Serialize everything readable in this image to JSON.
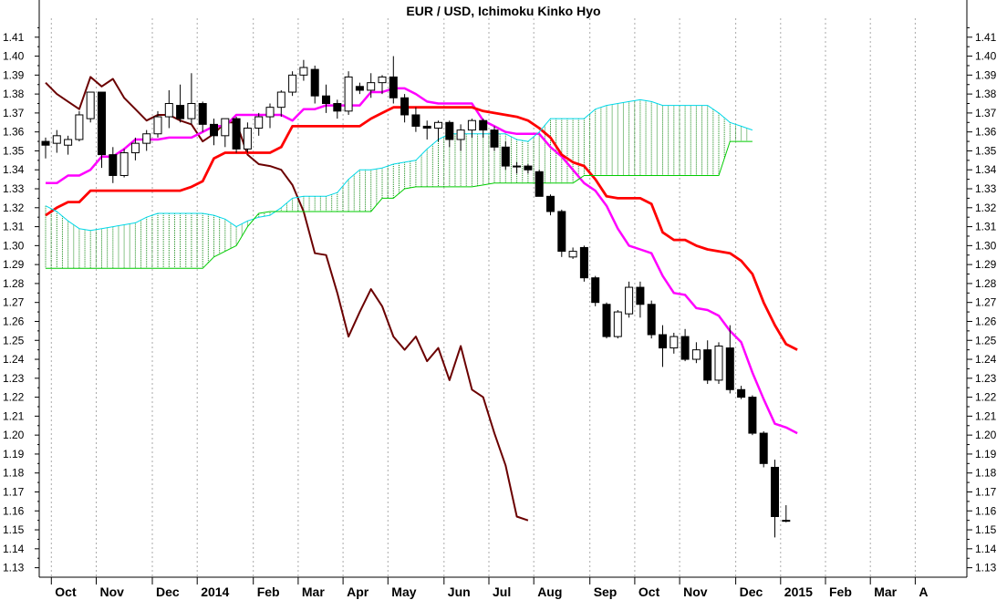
{
  "chart_data": {
    "type": "line",
    "title": "EUR / USD, Ichimoku Kinko Hyo",
    "ylim": [
      1.125,
      1.42
    ],
    "yticks": [
      1.13,
      1.14,
      1.15,
      1.16,
      1.17,
      1.18,
      1.19,
      1.2,
      1.21,
      1.22,
      1.23,
      1.24,
      1.25,
      1.26,
      1.27,
      1.28,
      1.29,
      1.3,
      1.31,
      1.32,
      1.33,
      1.34,
      1.35,
      1.36,
      1.37,
      1.38,
      1.39,
      1.4,
      1.41
    ],
    "ytick_labels": [
      "1.13",
      "1.14",
      "1.15",
      "1.16",
      "1.17",
      "1.18",
      "1.19",
      "1.20",
      "1.21",
      "1.22",
      "1.23",
      "1.24",
      "1.25",
      "1.26",
      "1.27",
      "1.28",
      "1.29",
      "1.30",
      "1.31",
      "1.32",
      "1.33",
      "1.34",
      "1.35",
      "1.36",
      "1.37",
      "1.38",
      "1.39",
      "1.40",
      "1.41"
    ],
    "months": [
      {
        "label": "Oct",
        "week": 1
      },
      {
        "label": "Nov",
        "week": 5
      },
      {
        "label": "Dec",
        "week": 10
      },
      {
        "label": "2014",
        "week": 14
      },
      {
        "label": "Feb",
        "week": 19
      },
      {
        "label": "Mar",
        "week": 23
      },
      {
        "label": "Apr",
        "week": 27
      },
      {
        "label": "May",
        "week": 31
      },
      {
        "label": "Jun",
        "week": 36
      },
      {
        "label": "Jul",
        "week": 40
      },
      {
        "label": "Aug",
        "week": 44
      },
      {
        "label": "Sep",
        "week": 49
      },
      {
        "label": "Oct",
        "week": 53
      },
      {
        "label": "Nov",
        "week": 57
      },
      {
        "label": "Dec",
        "week": 62
      },
      {
        "label": "2015",
        "week": 66
      },
      {
        "label": "Feb",
        "week": 70
      },
      {
        "label": "Mar",
        "week": 74
      },
      {
        "label": "A",
        "week": 78
      }
    ],
    "candles": [
      {
        "o": 1.355,
        "h": 1.357,
        "l": 1.346,
        "c": 1.353
      },
      {
        "o": 1.354,
        "h": 1.361,
        "l": 1.349,
        "c": 1.358
      },
      {
        "o": 1.353,
        "h": 1.358,
        "l": 1.348,
        "c": 1.356
      },
      {
        "o": 1.356,
        "h": 1.371,
        "l": 1.355,
        "c": 1.369
      },
      {
        "o": 1.367,
        "h": 1.381,
        "l": 1.365,
        "c": 1.381
      },
      {
        "o": 1.381,
        "h": 1.381,
        "l": 1.341,
        "c": 1.348
      },
      {
        "o": 1.348,
        "h": 1.352,
        "l": 1.333,
        "c": 1.337
      },
      {
        "o": 1.337,
        "h": 1.351,
        "l": 1.336,
        "c": 1.349
      },
      {
        "o": 1.349,
        "h": 1.357,
        "l": 1.345,
        "c": 1.354
      },
      {
        "o": 1.354,
        "h": 1.361,
        "l": 1.35,
        "c": 1.359
      },
      {
        "o": 1.359,
        "h": 1.371,
        "l": 1.357,
        "c": 1.368
      },
      {
        "o": 1.368,
        "h": 1.382,
        "l": 1.362,
        "c": 1.375
      },
      {
        "o": 1.374,
        "h": 1.385,
        "l": 1.365,
        "c": 1.367
      },
      {
        "o": 1.367,
        "h": 1.391,
        "l": 1.364,
        "c": 1.375
      },
      {
        "o": 1.375,
        "h": 1.376,
        "l": 1.36,
        "c": 1.364
      },
      {
        "o": 1.364,
        "h": 1.367,
        "l": 1.353,
        "c": 1.358
      },
      {
        "o": 1.358,
        "h": 1.367,
        "l": 1.352,
        "c": 1.367
      },
      {
        "o": 1.367,
        "h": 1.368,
        "l": 1.349,
        "c": 1.351
      },
      {
        "o": 1.351,
        "h": 1.365,
        "l": 1.349,
        "c": 1.362
      },
      {
        "o": 1.362,
        "h": 1.37,
        "l": 1.358,
        "c": 1.368
      },
      {
        "o": 1.368,
        "h": 1.375,
        "l": 1.362,
        "c": 1.373
      },
      {
        "o": 1.373,
        "h": 1.382,
        "l": 1.368,
        "c": 1.381
      },
      {
        "o": 1.381,
        "h": 1.392,
        "l": 1.379,
        "c": 1.39
      },
      {
        "o": 1.39,
        "h": 1.398,
        "l": 1.387,
        "c": 1.394
      },
      {
        "o": 1.393,
        "h": 1.395,
        "l": 1.375,
        "c": 1.379
      },
      {
        "o": 1.379,
        "h": 1.385,
        "l": 1.37,
        "c": 1.375
      },
      {
        "o": 1.375,
        "h": 1.377,
        "l": 1.367,
        "c": 1.371
      },
      {
        "o": 1.371,
        "h": 1.392,
        "l": 1.369,
        "c": 1.389
      },
      {
        "o": 1.384,
        "h": 1.386,
        "l": 1.38,
        "c": 1.382
      },
      {
        "o": 1.382,
        "h": 1.391,
        "l": 1.378,
        "c": 1.386
      },
      {
        "o": 1.386,
        "h": 1.39,
        "l": 1.38,
        "c": 1.389
      },
      {
        "o": 1.389,
        "h": 1.4,
        "l": 1.375,
        "c": 1.378
      },
      {
        "o": 1.378,
        "h": 1.38,
        "l": 1.365,
        "c": 1.369
      },
      {
        "o": 1.369,
        "h": 1.373,
        "l": 1.36,
        "c": 1.363
      },
      {
        "o": 1.363,
        "h": 1.366,
        "l": 1.356,
        "c": 1.362
      },
      {
        "o": 1.362,
        "h": 1.366,
        "l": 1.355,
        "c": 1.365
      },
      {
        "o": 1.365,
        "h": 1.366,
        "l": 1.352,
        "c": 1.356
      },
      {
        "o": 1.356,
        "h": 1.364,
        "l": 1.35,
        "c": 1.361
      },
      {
        "o": 1.361,
        "h": 1.367,
        "l": 1.357,
        "c": 1.366
      },
      {
        "o": 1.366,
        "h": 1.367,
        "l": 1.357,
        "c": 1.361
      },
      {
        "o": 1.361,
        "h": 1.363,
        "l": 1.35,
        "c": 1.352
      },
      {
        "o": 1.352,
        "h": 1.355,
        "l": 1.34,
        "c": 1.342
      },
      {
        "o": 1.342,
        "h": 1.344,
        "l": 1.338,
        "c": 1.342
      },
      {
        "o": 1.342,
        "h": 1.343,
        "l": 1.338,
        "c": 1.34
      },
      {
        "o": 1.339,
        "h": 1.34,
        "l": 1.326,
        "c": 1.326
      },
      {
        "o": 1.326,
        "h": 1.327,
        "l": 1.316,
        "c": 1.318
      },
      {
        "o": 1.318,
        "h": 1.319,
        "l": 1.294,
        "c": 1.297
      },
      {
        "o": 1.294,
        "h": 1.299,
        "l": 1.293,
        "c": 1.297
      },
      {
        "o": 1.299,
        "h": 1.3,
        "l": 1.281,
        "c": 1.283
      },
      {
        "o": 1.283,
        "h": 1.284,
        "l": 1.268,
        "c": 1.27
      },
      {
        "o": 1.269,
        "h": 1.27,
        "l": 1.251,
        "c": 1.252
      },
      {
        "o": 1.252,
        "h": 1.266,
        "l": 1.251,
        "c": 1.265
      },
      {
        "o": 1.264,
        "h": 1.281,
        "l": 1.262,
        "c": 1.278
      },
      {
        "o": 1.278,
        "h": 1.281,
        "l": 1.262,
        "c": 1.269
      },
      {
        "o": 1.269,
        "h": 1.271,
        "l": 1.251,
        "c": 1.253
      },
      {
        "o": 1.253,
        "h": 1.258,
        "l": 1.236,
        "c": 1.246
      },
      {
        "o": 1.246,
        "h": 1.254,
        "l": 1.243,
        "c": 1.252
      },
      {
        "o": 1.252,
        "h": 1.256,
        "l": 1.239,
        "c": 1.24
      },
      {
        "o": 1.24,
        "h": 1.249,
        "l": 1.238,
        "c": 1.245
      },
      {
        "o": 1.245,
        "h": 1.25,
        "l": 1.227,
        "c": 1.229
      },
      {
        "o": 1.229,
        "h": 1.249,
        "l": 1.227,
        "c": 1.247
      },
      {
        "o": 1.246,
        "h": 1.258,
        "l": 1.222,
        "c": 1.224
      },
      {
        "o": 1.224,
        "h": 1.226,
        "l": 1.219,
        "c": 1.22
      },
      {
        "o": 1.22,
        "h": 1.221,
        "l": 1.2,
        "c": 1.201
      },
      {
        "o": 1.201,
        "h": 1.202,
        "l": 1.183,
        "c": 1.185
      },
      {
        "o": 1.183,
        "h": 1.187,
        "l": 1.146,
        "c": 1.157
      },
      {
        "o": 1.155,
        "h": 1.163,
        "l": 1.154,
        "c": 1.155
      }
    ],
    "series": [
      {
        "role": "chikou",
        "color": "#6b0000",
        "start_week": 0,
        "values": [
          1.386,
          1.38,
          1.376,
          1.372,
          1.389,
          1.384,
          1.388,
          1.378,
          1.372,
          1.366,
          1.369,
          1.369,
          1.366,
          1.364,
          1.355,
          1.359,
          1.365,
          1.365,
          1.348,
          1.343,
          1.342,
          1.34,
          1.332,
          1.318,
          1.296,
          1.295,
          1.275,
          1.252,
          1.265,
          1.277,
          1.268,
          1.252,
          1.245,
          1.252,
          1.239,
          1.246,
          1.229,
          1.247,
          1.224,
          1.22,
          1.201,
          1.184,
          1.157,
          1.155
        ]
      },
      {
        "role": "tenkan",
        "color": "#ff00ff",
        "start_week": 0,
        "values": [
          1.333,
          1.333,
          1.337,
          1.337,
          1.34,
          1.347,
          1.347,
          1.351,
          1.356,
          1.356,
          1.356,
          1.357,
          1.357,
          1.357,
          1.36,
          1.363,
          1.363,
          1.369,
          1.369,
          1.369,
          1.369,
          1.369,
          1.366,
          1.372,
          1.372,
          1.374,
          1.374,
          1.374,
          1.374,
          1.381,
          1.381,
          1.383,
          1.383,
          1.38,
          1.376,
          1.375,
          1.375,
          1.375,
          1.375,
          1.366,
          1.363,
          1.36,
          1.359,
          1.359,
          1.359,
          1.352,
          1.347,
          1.34,
          1.333,
          1.329,
          1.321,
          1.309,
          1.3,
          1.298,
          1.296,
          1.284,
          1.275,
          1.274,
          1.267,
          1.266,
          1.263,
          1.255,
          1.249,
          1.233,
          1.219,
          1.206,
          1.204,
          1.201
        ]
      },
      {
        "role": "kijun",
        "color": "#ff0000",
        "start_week": 0,
        "values": [
          1.316,
          1.32,
          1.323,
          1.323,
          1.329,
          1.329,
          1.329,
          1.329,
          1.329,
          1.329,
          1.329,
          1.329,
          1.329,
          1.331,
          1.334,
          1.346,
          1.349,
          1.349,
          1.349,
          1.349,
          1.349,
          1.352,
          1.363,
          1.363,
          1.363,
          1.363,
          1.363,
          1.363,
          1.363,
          1.367,
          1.37,
          1.373,
          1.373,
          1.373,
          1.373,
          1.373,
          1.373,
          1.373,
          1.373,
          1.371,
          1.37,
          1.369,
          1.368,
          1.366,
          1.362,
          1.357,
          1.348,
          1.344,
          1.342,
          1.335,
          1.326,
          1.325,
          1.325,
          1.325,
          1.322,
          1.307,
          1.303,
          1.303,
          1.3,
          1.298,
          1.297,
          1.296,
          1.292,
          1.285,
          1.27,
          1.258,
          1.248,
          1.245
        ]
      },
      {
        "role": "senkou_a",
        "color": "#00d8e8",
        "start_week": 0,
        "values": [
          1.321,
          1.318,
          1.313,
          1.309,
          1.308,
          1.309,
          1.31,
          1.311,
          1.312,
          1.315,
          1.317,
          1.317,
          1.317,
          1.317,
          1.317,
          1.316,
          1.314,
          1.31,
          1.313,
          1.315,
          1.316,
          1.32,
          1.325,
          1.326,
          1.326,
          1.326,
          1.328,
          1.335,
          1.34,
          1.34,
          1.341,
          1.343,
          1.344,
          1.345,
          1.351,
          1.356,
          1.359,
          1.359,
          1.359,
          1.359,
          1.359,
          1.359,
          1.356,
          1.355,
          1.36,
          1.367,
          1.367,
          1.367,
          1.367,
          1.372,
          1.374,
          1.375,
          1.376,
          1.377,
          1.376,
          1.374,
          1.374,
          1.374,
          1.374,
          1.374,
          1.37,
          1.365,
          1.363,
          1.361
        ]
      },
      {
        "role": "senkou_b",
        "color": "#00cc00",
        "start_week": 0,
        "values": [
          1.288,
          1.288,
          1.288,
          1.288,
          1.288,
          1.288,
          1.288,
          1.288,
          1.288,
          1.288,
          1.288,
          1.288,
          1.288,
          1.288,
          1.288,
          1.294,
          1.297,
          1.3,
          1.31,
          1.317,
          1.318,
          1.318,
          1.318,
          1.318,
          1.318,
          1.318,
          1.318,
          1.318,
          1.318,
          1.318,
          1.325,
          1.325,
          1.33,
          1.331,
          1.331,
          1.331,
          1.331,
          1.331,
          1.331,
          1.332,
          1.333,
          1.333,
          1.333,
          1.333,
          1.333,
          1.333,
          1.333,
          1.333,
          1.337,
          1.337,
          1.337,
          1.337,
          1.337,
          1.337,
          1.337,
          1.337,
          1.337,
          1.337,
          1.337,
          1.337,
          1.337,
          1.355,
          1.355,
          1.355
        ]
      }
    ],
    "colors": {
      "up_candle_fill": "#ffffff",
      "down_candle_fill": "#000000",
      "cloud_hatch": "#1a8a1a",
      "gridline": "#aaaaaa"
    }
  }
}
